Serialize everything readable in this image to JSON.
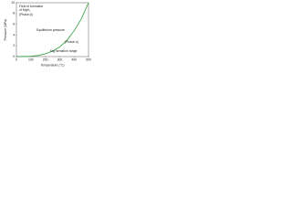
{
  "chart_data": {
    "type": "line",
    "x_label": "Temperature (°C)",
    "y_label": "Pressure (MPa)",
    "x": [
      0,
      100,
      150,
      200,
      250,
      300,
      350,
      400,
      450,
      500
    ],
    "series": [
      {
        "name": "Equilibrium pressure",
        "color": "#2e9e3e",
        "values": [
          0,
          0.05,
          0.2,
          0.5,
          1,
          1.8,
          3,
          4.8,
          7,
          10
        ]
      }
    ],
    "xlim": [
      0,
      500
    ],
    "xticks": [
      0,
      100,
      200,
      300,
      400,
      500
    ],
    "ylim": [
      0,
      10
    ],
    "yticks": [
      0,
      2,
      4,
      6,
      8,
      10
    ],
    "annotations": [
      "Field of formation",
      "of MgH₂",
      "(Phase β)",
      "Equilibrium pressure",
      "(Phase α)",
      "Mg formation range"
    ]
  }
}
